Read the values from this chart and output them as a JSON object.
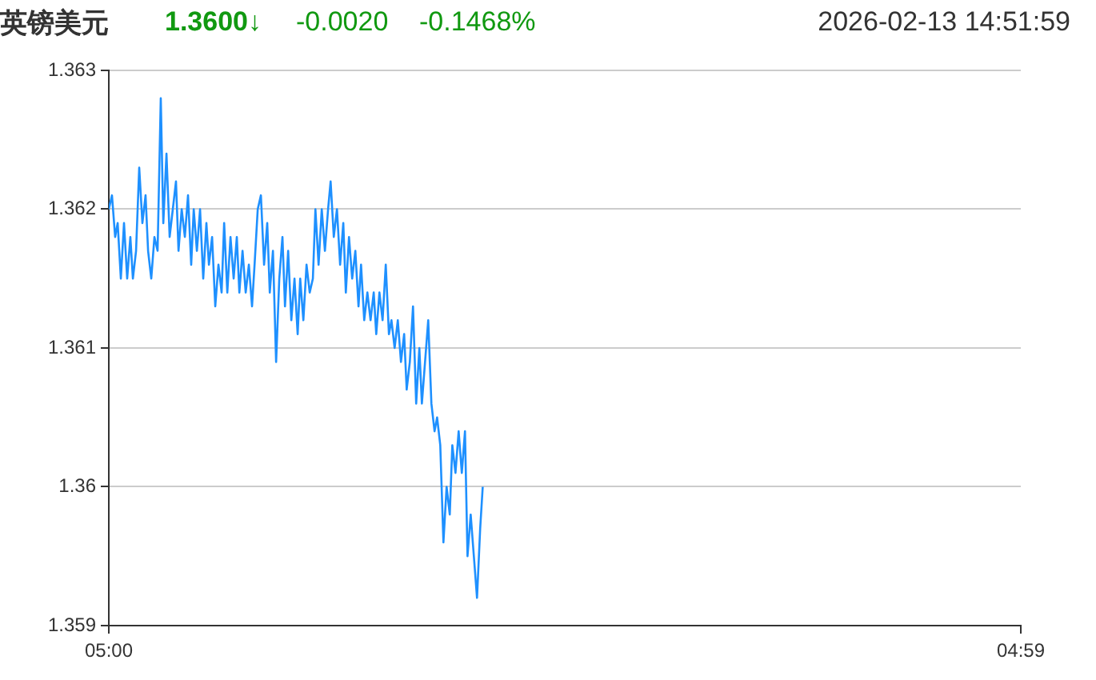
{
  "chart_data": {
    "type": "line",
    "title": "英镑美元",
    "annotations": [
      "1.3600↓",
      "-0.0020",
      "-0.1468%",
      "2026-02-13 14:51:59"
    ],
    "x": [
      "2026-02-13T05:00",
      "2026-02-13T05:05",
      "2026-02-13T05:10",
      "2026-02-13T05:14",
      "2026-02-13T05:19",
      "2026-02-13T05:24",
      "2026-02-13T05:29",
      "2026-02-13T05:34",
      "2026-02-13T05:38",
      "2026-02-13T05:43",
      "2026-02-13T05:48",
      "2026-02-13T05:53",
      "2026-02-13T05:58",
      "2026-02-13T06:02",
      "2026-02-13T06:07",
      "2026-02-13T06:12",
      "2026-02-13T06:17",
      "2026-02-13T06:22",
      "2026-02-13T06:26",
      "2026-02-13T06:31",
      "2026-02-13T06:36",
      "2026-02-13T06:41",
      "2026-02-13T06:46",
      "2026-02-13T06:50",
      "2026-02-13T06:55",
      "2026-02-13T07:00",
      "2026-02-13T07:05",
      "2026-02-13T07:10",
      "2026-02-13T07:14",
      "2026-02-13T07:19",
      "2026-02-13T07:24",
      "2026-02-13T07:29",
      "2026-02-13T07:34",
      "2026-02-13T07:38",
      "2026-02-13T07:43",
      "2026-02-13T07:48",
      "2026-02-13T07:53",
      "2026-02-13T07:58",
      "2026-02-13T08:02",
      "2026-02-13T08:07",
      "2026-02-13T08:12",
      "2026-02-13T08:17",
      "2026-02-13T08:22",
      "2026-02-13T08:26",
      "2026-02-13T08:31",
      "2026-02-13T08:36",
      "2026-02-13T08:41",
      "2026-02-13T08:46",
      "2026-02-13T08:50",
      "2026-02-13T08:55",
      "2026-02-13T09:00",
      "2026-02-13T09:05",
      "2026-02-13T09:10",
      "2026-02-13T09:14",
      "2026-02-13T09:19",
      "2026-02-13T09:24",
      "2026-02-13T09:29",
      "2026-02-13T09:34",
      "2026-02-13T09:38",
      "2026-02-13T09:43",
      "2026-02-13T09:48",
      "2026-02-13T09:53",
      "2026-02-13T09:58",
      "2026-02-13T10:02",
      "2026-02-13T10:07",
      "2026-02-13T10:12",
      "2026-02-13T10:17",
      "2026-02-13T10:22",
      "2026-02-13T10:26",
      "2026-02-13T10:31",
      "2026-02-13T10:36",
      "2026-02-13T10:41",
      "2026-02-13T10:46",
      "2026-02-13T10:50",
      "2026-02-13T10:55",
      "2026-02-13T11:00",
      "2026-02-13T11:05",
      "2026-02-13T11:10",
      "2026-02-13T11:14",
      "2026-02-13T11:19",
      "2026-02-13T11:24",
      "2026-02-13T11:29",
      "2026-02-13T11:34",
      "2026-02-13T11:38",
      "2026-02-13T11:43",
      "2026-02-13T11:48",
      "2026-02-13T11:53",
      "2026-02-13T11:58",
      "2026-02-13T12:02",
      "2026-02-13T12:07",
      "2026-02-13T12:12",
      "2026-02-13T12:17",
      "2026-02-13T12:22",
      "2026-02-13T12:26",
      "2026-02-13T12:31",
      "2026-02-13T12:36",
      "2026-02-13T12:41",
      "2026-02-13T12:46",
      "2026-02-13T12:50",
      "2026-02-13T12:55",
      "2026-02-13T13:00",
      "2026-02-13T13:05",
      "2026-02-13T13:10",
      "2026-02-13T13:14",
      "2026-02-13T13:19",
      "2026-02-13T13:24",
      "2026-02-13T13:29",
      "2026-02-13T13:34",
      "2026-02-13T13:38",
      "2026-02-13T13:43",
      "2026-02-13T13:48",
      "2026-02-13T13:53",
      "2026-02-13T13:58",
      "2026-02-13T14:02",
      "2026-02-13T14:07",
      "2026-02-13T14:12",
      "2026-02-13T14:17",
      "2026-02-13T14:22",
      "2026-02-13T14:26",
      "2026-02-13T14:31",
      "2026-02-13T14:36",
      "2026-02-13T14:41",
      "2026-02-13T14:46",
      "2026-02-13T14:50"
    ],
    "values": [
      1.362,
      1.3621,
      1.3618,
      1.3619,
      1.3615,
      1.3619,
      1.3615,
      1.3618,
      1.3615,
      1.3617,
      1.3623,
      1.3619,
      1.3621,
      1.3617,
      1.3615,
      1.3618,
      1.3617,
      1.3628,
      1.3619,
      1.3624,
      1.3618,
      1.362,
      1.3622,
      1.3617,
      1.362,
      1.3618,
      1.3621,
      1.3616,
      1.362,
      1.3617,
      1.362,
      1.3615,
      1.3619,
      1.3616,
      1.3618,
      1.3613,
      1.3616,
      1.3614,
      1.3619,
      1.3614,
      1.3618,
      1.3615,
      1.3618,
      1.3614,
      1.3617,
      1.3614,
      1.3616,
      1.3613,
      1.3616,
      1.362,
      1.3621,
      1.3616,
      1.3619,
      1.3614,
      1.3617,
      1.3609,
      1.3615,
      1.3618,
      1.3613,
      1.3617,
      1.3612,
      1.3615,
      1.3611,
      1.3615,
      1.3612,
      1.3616,
      1.3614,
      1.3615,
      1.362,
      1.3616,
      1.362,
      1.3617,
      1.362,
      1.3622,
      1.3618,
      1.362,
      1.3616,
      1.3619,
      1.3614,
      1.3618,
      1.3615,
      1.3617,
      1.3613,
      1.3616,
      1.3612,
      1.3614,
      1.3612,
      1.3614,
      1.3611,
      1.3614,
      1.3612,
      1.3616,
      1.3611,
      1.3612,
      1.361,
      1.3612,
      1.3609,
      1.3611,
      1.3607,
      1.3609,
      1.3613,
      1.3606,
      1.361,
      1.3606,
      1.3609,
      1.3612,
      1.3606,
      1.3604,
      1.3605,
      1.3603,
      1.3596,
      1.36,
      1.3598,
      1.3603,
      1.3601,
      1.3604,
      1.3601,
      1.3604,
      1.3595,
      1.3598,
      1.3595,
      1.3592,
      1.3597,
      1.36
    ],
    "color": "#1e90ff",
    "xlim": [
      "2026-02-13T05:00",
      "2026-02-14T04:59"
    ],
    "xticks": [
      {
        "value": "2026-02-13T05:00",
        "label": "05:00"
      },
      {
        "value": "2026-02-14T04:59",
        "label": "04:59"
      }
    ],
    "ylim": [
      1.359,
      1.363
    ],
    "yticks": [
      1.359,
      1.36,
      1.361,
      1.362,
      1.363
    ],
    "grid": "y",
    "legend": false,
    "marker": "none",
    "line_style": "solid"
  }
}
